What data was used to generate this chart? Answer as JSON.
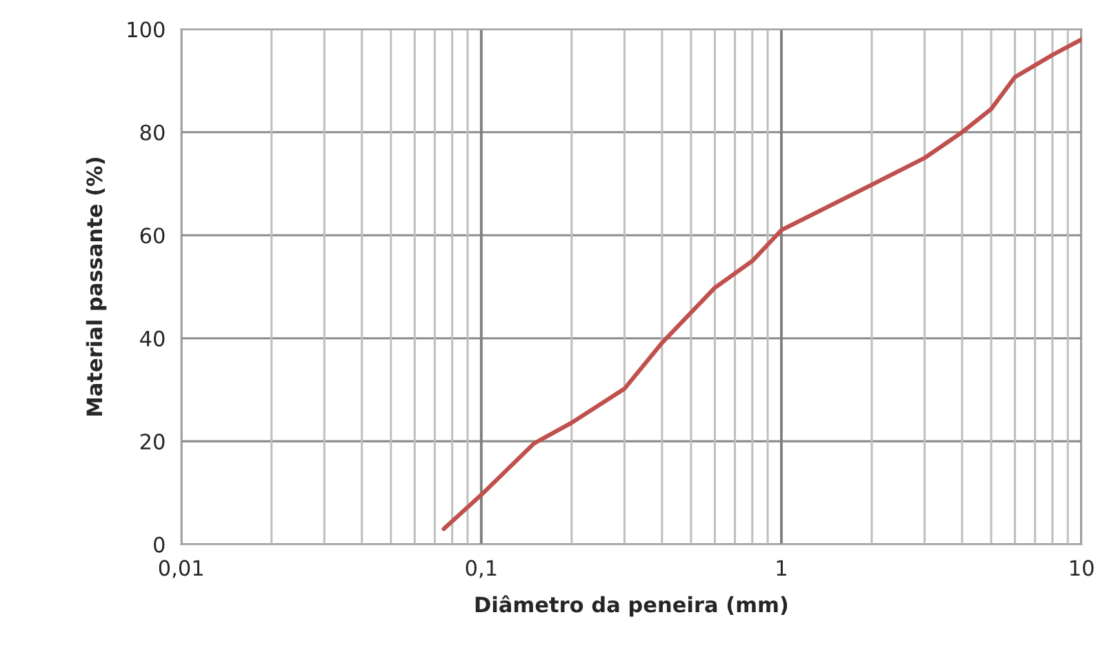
{
  "chart_data": {
    "type": "line",
    "xlabel": "Diâmetro da peneira (mm)",
    "ylabel": "Material passante (%)",
    "log": "x",
    "grid": true,
    "marker": "none",
    "line_style": "solid",
    "x": [
      0.075,
      0.1,
      0.15,
      0.2,
      0.3,
      0.4,
      0.5,
      0.6,
      0.8,
      1,
      2,
      3,
      4,
      5,
      6,
      8,
      10
    ],
    "series": [
      {
        "color": "#c0504d",
        "values": [
          3,
          9.6,
          19.6,
          23.6,
          30.2,
          39.1,
          45,
          49.8,
          55,
          61,
          69.8,
          75,
          80,
          84.5,
          90.7,
          95,
          98
        ]
      }
    ],
    "xlim": [
      0.01,
      10
    ],
    "ylim": [
      0,
      100
    ],
    "xticks": [
      {
        "value": 0.01,
        "label": "0,01"
      },
      {
        "value": 0.02,
        "label": null
      },
      {
        "value": 0.03,
        "label": null
      },
      {
        "value": 0.04,
        "label": null
      },
      {
        "value": 0.05,
        "label": null
      },
      {
        "value": 0.06,
        "label": null
      },
      {
        "value": 0.07,
        "label": null
      },
      {
        "value": 0.08,
        "label": null
      },
      {
        "value": 0.09,
        "label": null
      },
      {
        "value": 0.1,
        "label": "0,1"
      },
      {
        "value": 0.2,
        "label": null
      },
      {
        "value": 0.3,
        "label": null
      },
      {
        "value": 0.4,
        "label": null
      },
      {
        "value": 0.5,
        "label": null
      },
      {
        "value": 0.6,
        "label": null
      },
      {
        "value": 0.7,
        "label": null
      },
      {
        "value": 0.8,
        "label": null
      },
      {
        "value": 0.9,
        "label": null
      },
      {
        "value": 1,
        "label": "1"
      },
      {
        "value": 2,
        "label": null
      },
      {
        "value": 3,
        "label": null
      },
      {
        "value": 4,
        "label": null
      },
      {
        "value": 5,
        "label": null
      },
      {
        "value": 6,
        "label": null
      },
      {
        "value": 7,
        "label": null
      },
      {
        "value": 8,
        "label": null
      },
      {
        "value": 9,
        "label": null
      },
      {
        "value": 10,
        "label": "10"
      }
    ],
    "yticks": [
      0,
      20,
      40,
      60,
      80,
      100
    ]
  }
}
